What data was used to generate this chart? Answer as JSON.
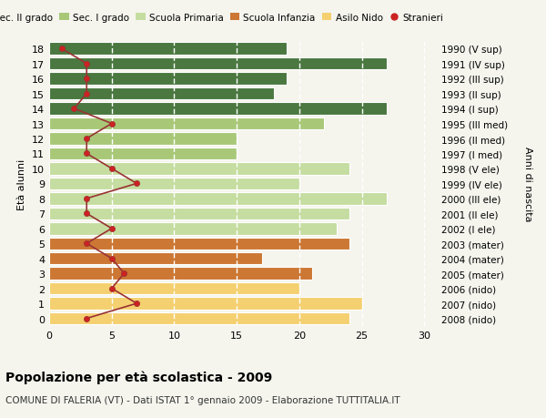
{
  "ages": [
    0,
    1,
    2,
    3,
    4,
    5,
    6,
    7,
    8,
    9,
    10,
    11,
    12,
    13,
    14,
    15,
    16,
    17,
    18
  ],
  "labels_right": [
    "2008 (nido)",
    "2007 (nido)",
    "2006 (nido)",
    "2005 (mater)",
    "2004 (mater)",
    "2003 (mater)",
    "2002 (I ele)",
    "2001 (II ele)",
    "2000 (III ele)",
    "1999 (IV ele)",
    "1998 (V ele)",
    "1997 (I med)",
    "1996 (II med)",
    "1995 (III med)",
    "1994 (I sup)",
    "1993 (II sup)",
    "1992 (III sup)",
    "1991 (IV sup)",
    "1990 (V sup)"
  ],
  "bar_values": [
    24,
    25,
    20,
    21,
    17,
    24,
    23,
    24,
    27,
    20,
    24,
    15,
    15,
    22,
    27,
    18,
    19,
    27,
    19
  ],
  "stranieri_values": [
    3,
    7,
    5,
    6,
    5,
    3,
    5,
    3,
    3,
    7,
    5,
    3,
    3,
    5,
    2,
    3,
    3,
    3,
    1
  ],
  "color_nido": "#f5d070",
  "color_mater": "#cc7733",
  "color_ele": "#c5dda0",
  "color_med": "#a8c878",
  "color_sup": "#4a7840",
  "color_stranieri_line": "#993333",
  "color_stranieri_dot": "#cc2222",
  "legend_colors": [
    "#4a7840",
    "#a8c878",
    "#c5dda0",
    "#cc7733",
    "#f5d070"
  ],
  "legend_labels": [
    "Sec. II grado",
    "Sec. I grado",
    "Scuola Primaria",
    "Scuola Infanzia",
    "Asilo Nido",
    "Stranieri"
  ],
  "title_bold": "Popolazione per età scolastica - 2009",
  "subtitle": "COMUNE DI FALERIA (VT) - Dati ISTAT 1° gennaio 2009 - Elaborazione TUTTITALIA.IT",
  "ylabel_left": "Età alunni",
  "ylabel_right": "Anni di nascita",
  "bg_color": "#f5f5ee",
  "grid_color": "#ffffff"
}
